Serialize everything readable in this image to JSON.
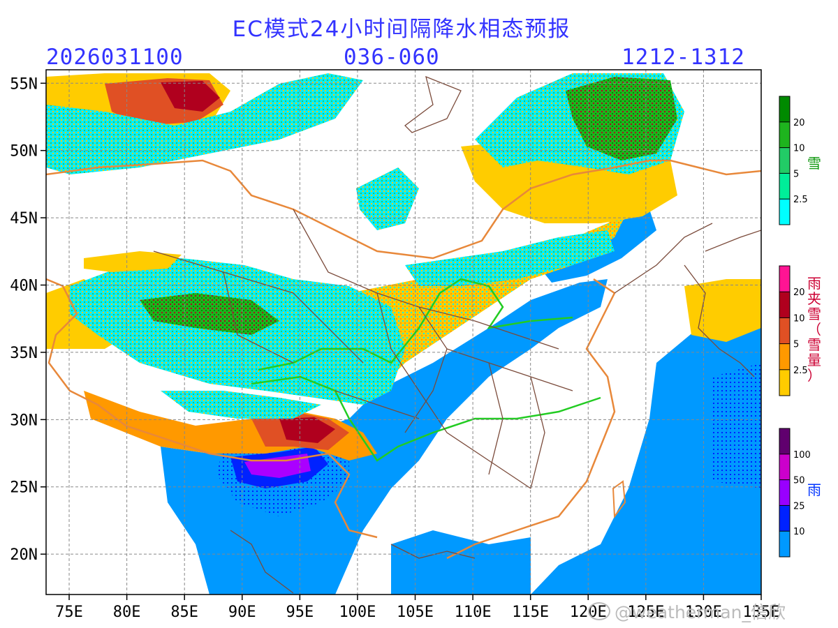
{
  "header": {
    "title": "EC模式24小时间隔降水相态预报",
    "init_time": "2026031100",
    "forecast_hours": "036-060",
    "valid_period": "1212-1312"
  },
  "map": {
    "lon_range": [
      73,
      135
    ],
    "lat_range": [
      17,
      56
    ],
    "lon_ticks": [
      "75E",
      "80E",
      "85E",
      "90E",
      "95E",
      "100E",
      "105E",
      "110E",
      "115E",
      "120E",
      "125E",
      "130E",
      "135E"
    ],
    "lat_ticks": [
      "55N",
      "50N",
      "45N",
      "40N",
      "35N",
      "30N",
      "25N",
      "20N"
    ]
  },
  "legends": {
    "snow": {
      "label": "雪",
      "label_color": "#119911",
      "ticks": [
        "20",
        "10",
        "5",
        "2.5"
      ],
      "colors": [
        "#008a00",
        "#1eb41e",
        "#22cc66",
        "#00ee99",
        "#00ffff"
      ]
    },
    "mix": {
      "label": "雨夹雪（雪量）",
      "label_color": "#cc0033",
      "ticks": [
        "20",
        "10",
        "5",
        "2.5"
      ],
      "colors": [
        "#ff1493",
        "#b0001e",
        "#e05024",
        "#ff9900",
        "#ffcc00"
      ]
    },
    "rain": {
      "label": "雨",
      "label_color": "#0033ff",
      "ticks": [
        "100",
        "50",
        "25",
        "10"
      ],
      "colors": [
        "#60006e",
        "#cc00cc",
        "#9900ff",
        "#0022ff",
        "#0099ff"
      ]
    }
  },
  "watermark": "@weatherman_信欣"
}
